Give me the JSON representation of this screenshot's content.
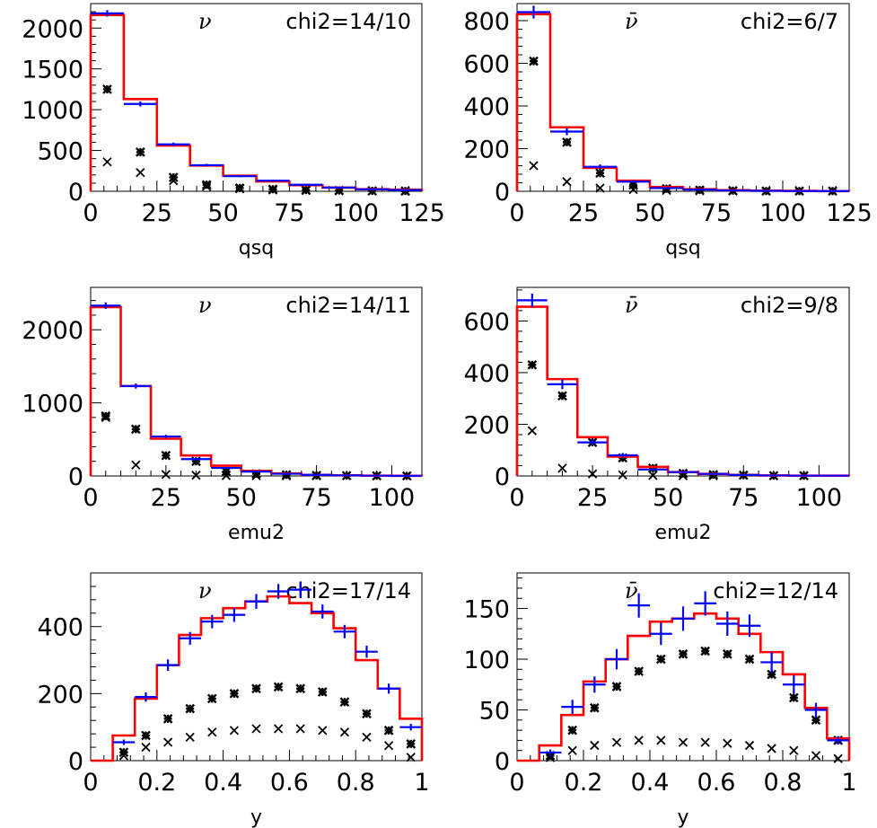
{
  "colors": {
    "data": "#0000ff",
    "model": "#ff0000",
    "component": "#000000"
  },
  "chart_data": [
    {
      "type": "line",
      "particle": "ν",
      "chi2": "chi2=14/10",
      "xlabel": "qsq",
      "xlim": [
        0,
        125
      ],
      "ylim": [
        0,
        2300
      ],
      "xticks": [
        0,
        25,
        50,
        75,
        100,
        125
      ],
      "yticks": [
        0,
        500,
        1000,
        1500,
        2000
      ],
      "bin_edges": [
        0,
        12.5,
        25,
        37.5,
        50,
        62.5,
        75,
        87.5,
        100,
        112.5,
        125
      ],
      "series": [
        {
          "values": [
            2180,
            1070,
            575,
            320,
            185,
            130,
            80,
            45,
            25,
            15
          ],
          "yerr": [
            40,
            30,
            22,
            17,
            13,
            11,
            9,
            7,
            5,
            4
          ]
        },
        {
          "values": [
            2160,
            1130,
            560,
            315,
            190,
            120,
            75,
            45,
            25,
            20
          ]
        },
        {
          "values": [
            1250,
            480,
            170,
            80,
            40,
            25,
            15,
            10,
            5,
            3
          ]
        },
        {
          "values": [
            360,
            230,
            130,
            60,
            30,
            15,
            10,
            5,
            3,
            2
          ]
        }
      ]
    },
    {
      "type": "line",
      "particle": "ν̄",
      "chi2": "chi2=6/7",
      "xlabel": "qsq",
      "xlim": [
        0,
        125
      ],
      "ylim": [
        0,
        880
      ],
      "xticks": [
        0,
        25,
        50,
        75,
        100,
        125
      ],
      "yticks": [
        0,
        200,
        400,
        600,
        800
      ],
      "bin_edges": [
        0,
        12.5,
        25,
        37.5,
        50,
        62.5,
        75,
        87.5,
        100,
        112.5,
        125
      ],
      "series": [
        {
          "values": [
            840,
            280,
            115,
            45,
            15,
            8,
            4,
            2,
            1,
            1
          ],
          "yerr": [
            30,
            17,
            11,
            7,
            4,
            3,
            2,
            1,
            1,
            1
          ]
        },
        {
          "values": [
            830,
            300,
            110,
            50,
            20,
            10,
            5,
            3,
            2,
            1
          ]
        },
        {
          "values": [
            610,
            230,
            85,
            30,
            12,
            6,
            3,
            1,
            1,
            1
          ]
        },
        {
          "values": [
            120,
            45,
            15,
            8,
            4,
            2,
            1,
            1,
            0,
            0
          ]
        }
      ]
    },
    {
      "type": "line",
      "particle": "ν",
      "chi2": "chi2=14/11",
      "xlabel": "emu2",
      "xlim": [
        0,
        110
      ],
      "ylim": [
        0,
        2580
      ],
      "xticks": [
        0,
        25,
        50,
        75,
        100
      ],
      "yticks": [
        0,
        1000,
        2000
      ],
      "bin_edges": [
        0,
        10,
        20,
        30,
        40,
        50,
        60,
        70,
        80,
        90,
        100,
        110
      ],
      "series": [
        {
          "values": [
            2330,
            1230,
            540,
            230,
            110,
            60,
            30,
            15,
            8,
            4,
            2
          ],
          "yerr": [
            45,
            35,
            23,
            15,
            10,
            8,
            6,
            4,
            3,
            2,
            1
          ]
        },
        {
          "values": [
            2310,
            1230,
            510,
            280,
            140,
            70,
            35,
            15,
            8,
            4,
            2
          ]
        },
        {
          "values": [
            820,
            640,
            280,
            200,
            60,
            30,
            15,
            8,
            4,
            2,
            1
          ]
        },
        {
          "values": [
            800,
            150,
            20,
            10,
            5,
            3,
            2,
            1,
            0,
            0,
            0
          ]
        }
      ]
    },
    {
      "type": "line",
      "particle": "ν̄",
      "chi2": "chi2=9/8",
      "xlabel": "emu2",
      "xlim": [
        0,
        110
      ],
      "ylim": [
        0,
        730
      ],
      "xticks": [
        0,
        25,
        50,
        75,
        100
      ],
      "yticks": [
        0,
        200,
        400,
        600
      ],
      "bin_edges": [
        0,
        10,
        20,
        30,
        40,
        50,
        60,
        70,
        80,
        90,
        100,
        110
      ],
      "series": [
        {
          "values": [
            680,
            355,
            130,
            80,
            25,
            15,
            8,
            4,
            2,
            1,
            1
          ],
          "yerr": [
            26,
            19,
            11,
            9,
            5,
            4,
            3,
            2,
            1,
            1,
            1
          ]
        },
        {
          "values": [
            655,
            375,
            150,
            75,
            35,
            15,
            8,
            4,
            2,
            1,
            1
          ]
        },
        {
          "values": [
            430,
            310,
            130,
            70,
            30,
            10,
            5,
            3,
            1,
            1,
            0
          ]
        },
        {
          "values": [
            175,
            30,
            8,
            4,
            2,
            1,
            1,
            0,
            0,
            0,
            0
          ]
        }
      ]
    },
    {
      "type": "line",
      "particle": "ν",
      "chi2": "chi2=17/14",
      "xlabel": "y",
      "xlim": [
        0,
        1
      ],
      "ylim": [
        0,
        560
      ],
      "xticks": [
        0,
        0.2,
        0.4,
        0.6,
        0.8,
        1
      ],
      "xtick_labels": [
        "0",
        "0.2",
        "0.4",
        "0.6",
        "0.8",
        "1"
      ],
      "yticks": [
        0,
        200,
        400
      ],
      "bin_edges": [
        0,
        0.0667,
        0.1333,
        0.2,
        0.2667,
        0.3333,
        0.4,
        0.4667,
        0.5333,
        0.6,
        0.6667,
        0.7333,
        0.8,
        0.8667,
        0.9333,
        1
      ],
      "series": [
        {
          "values": [
            0,
            55,
            190,
            285,
            365,
            415,
            435,
            475,
            505,
            510,
            445,
            385,
            325,
            215,
            100
          ],
          "yerr": [
            0,
            8,
            14,
            17,
            19,
            20,
            21,
            22,
            22,
            23,
            21,
            20,
            18,
            15,
            10
          ]
        },
        {
          "values": [
            0,
            75,
            185,
            285,
            375,
            425,
            455,
            475,
            490,
            470,
            440,
            395,
            300,
            215,
            125
          ]
        },
        {
          "values": [
            0,
            25,
            75,
            125,
            155,
            185,
            200,
            215,
            220,
            215,
            205,
            175,
            140,
            90,
            50
          ]
        },
        {
          "values": [
            0,
            15,
            40,
            55,
            70,
            85,
            90,
            95,
            95,
            95,
            90,
            85,
            70,
            45,
            10
          ]
        }
      ]
    },
    {
      "type": "line",
      "particle": "ν̄",
      "chi2": "chi2=12/14",
      "xlabel": "y",
      "xlim": [
        0,
        1
      ],
      "ylim": [
        0,
        185
      ],
      "xticks": [
        0,
        0.2,
        0.4,
        0.6,
        0.8,
        1
      ],
      "xtick_labels": [
        "0",
        "0.2",
        "0.4",
        "0.6",
        "0.8",
        "1"
      ],
      "yticks": [
        0,
        50,
        100,
        150
      ],
      "bin_edges": [
        0,
        0.0667,
        0.1333,
        0.2,
        0.2667,
        0.3333,
        0.4,
        0.4667,
        0.5333,
        0.6,
        0.6667,
        0.7333,
        0.8,
        0.8667,
        0.9333,
        1
      ],
      "series": [
        {
          "values": [
            0,
            8,
            53,
            75,
            100,
            153,
            125,
            140,
            155,
            135,
            133,
            97,
            75,
            50,
            20
          ],
          "yerr": [
            0,
            3,
            7,
            8,
            10,
            12,
            11,
            12,
            12,
            12,
            11,
            10,
            9,
            7,
            4
          ]
        },
        {
          "values": [
            0,
            15,
            45,
            78,
            100,
            123,
            137,
            140,
            145,
            140,
            125,
            107,
            85,
            52,
            22
          ]
        },
        {
          "values": [
            0,
            5,
            30,
            52,
            73,
            88,
            100,
            105,
            108,
            105,
            100,
            85,
            62,
            40,
            20
          ]
        },
        {
          "values": [
            0,
            3,
            10,
            15,
            18,
            20,
            20,
            18,
            18,
            17,
            15,
            12,
            10,
            5,
            2
          ]
        }
      ]
    }
  ]
}
